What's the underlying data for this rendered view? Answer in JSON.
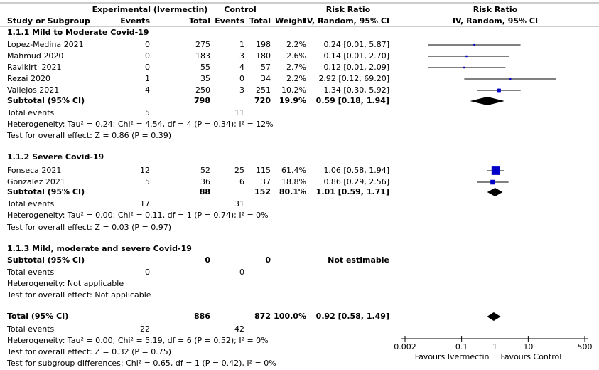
{
  "chart_data": {
    "type": "forest",
    "header": {
      "exp_group": "Experimental (Ivermectin)",
      "ctrl_group": "Control",
      "rr_title": "Risk Ratio",
      "rr_method": "IV, Random, 95% CI",
      "plot_title": "Risk Ratio",
      "plot_method": "IV, Random, 95% CI",
      "study_col": "Study or Subgroup",
      "exp_events": "Events",
      "exp_total": "Total",
      "ctrl_events": "Events",
      "ctrl_total": "Total",
      "weight": "Weight"
    },
    "xlim": [
      0.002,
      500
    ],
    "xticks": [
      0.002,
      0.1,
      1,
      10,
      500
    ],
    "log": true,
    "xlabel_left": "Favours Ivermectin",
    "xlabel_right": "Favours Control",
    "study_color": "#0000c8",
    "summary_color": "#000000",
    "rows": [
      {
        "kind": "heading",
        "label": "1.1.1 Mild to Moderate Covid-19"
      },
      {
        "kind": "study",
        "label": "Lopez-Medina 2021",
        "e_events": 0,
        "e_total": 275,
        "c_events": 1,
        "c_total": 198,
        "weight": 2.2,
        "weight_label": "2.2%",
        "rr": 0.24,
        "lo": 0.01,
        "hi": 5.87,
        "ci_label": "0.24 [0.01, 5.87]"
      },
      {
        "kind": "study",
        "label": "Mahmud 2020",
        "e_events": 0,
        "e_total": 183,
        "c_events": 3,
        "c_total": 180,
        "weight": 2.6,
        "weight_label": "2.6%",
        "rr": 0.14,
        "lo": 0.01,
        "hi": 2.7,
        "ci_label": "0.14 [0.01, 2.70]"
      },
      {
        "kind": "study",
        "label": "Ravikirti 2021",
        "e_events": 0,
        "e_total": 55,
        "c_events": 4,
        "c_total": 57,
        "weight": 2.7,
        "weight_label": "2.7%",
        "rr": 0.12,
        "lo": 0.01,
        "hi": 2.09,
        "ci_label": "0.12 [0.01, 2.09]"
      },
      {
        "kind": "study",
        "label": "Rezai 2020",
        "e_events": 1,
        "e_total": 35,
        "c_events": 0,
        "c_total": 34,
        "weight": 2.2,
        "weight_label": "2.2%",
        "rr": 2.92,
        "lo": 0.12,
        "hi": 69.2,
        "ci_label": "2.92 [0.12, 69.20]"
      },
      {
        "kind": "study",
        "label": "Vallejos 2021",
        "e_events": 4,
        "e_total": 250,
        "c_events": 3,
        "c_total": 251,
        "weight": 10.2,
        "weight_label": "10.2%",
        "rr": 1.34,
        "lo": 0.3,
        "hi": 5.92,
        "ci_label": "1.34 [0.30, 5.92]"
      },
      {
        "kind": "subtotal",
        "label": "Subtotal (95% CI)",
        "e_total": 798,
        "c_total": 720,
        "weight": 19.9,
        "weight_label": "19.9%",
        "rr": 0.59,
        "lo": 0.18,
        "hi": 1.94,
        "ci_label": "0.59 [0.18, 1.94]"
      },
      {
        "kind": "events",
        "label": "Total events",
        "e_events": 5,
        "c_events": 11
      },
      {
        "kind": "note",
        "label": "Heterogeneity: Tau² = 0.24; Chi² = 4.54, df = 4 (P = 0.34); I² = 12%"
      },
      {
        "kind": "note",
        "label": "Test for overall effect: Z = 0.86 (P = 0.39)"
      },
      {
        "kind": "heading",
        "label": "1.1.2 Severe Covid-19"
      },
      {
        "kind": "study",
        "label": "Fonseca 2021",
        "e_events": 12,
        "e_total": 52,
        "c_events": 25,
        "c_total": 115,
        "weight": 61.4,
        "weight_label": "61.4%",
        "rr": 1.06,
        "lo": 0.58,
        "hi": 1.94,
        "ci_label": "1.06 [0.58, 1.94]"
      },
      {
        "kind": "study",
        "label": "Gonzalez 2021",
        "e_events": 5,
        "e_total": 36,
        "c_events": 6,
        "c_total": 37,
        "weight": 18.8,
        "weight_label": "18.8%",
        "rr": 0.86,
        "lo": 0.29,
        "hi": 2.56,
        "ci_label": "0.86 [0.29, 2.56]"
      },
      {
        "kind": "subtotal",
        "label": "Subtotal (95% CI)",
        "e_total": 88,
        "c_total": 152,
        "weight": 80.1,
        "weight_label": "80.1%",
        "rr": 1.01,
        "lo": 0.59,
        "hi": 1.71,
        "ci_label": "1.01 [0.59, 1.71]"
      },
      {
        "kind": "events",
        "label": "Total events",
        "e_events": 17,
        "c_events": 31
      },
      {
        "kind": "note",
        "label": "Heterogeneity: Tau² = 0.00; Chi² = 0.11, df = 1 (P = 0.74); I² = 0%"
      },
      {
        "kind": "note",
        "label": "Test for overall effect: Z = 0.03 (P = 0.97)"
      },
      {
        "kind": "heading",
        "label": "1.1.3 Mild, moderate and severe Covid-19"
      },
      {
        "kind": "subtotal",
        "label": "Subtotal (95% CI)",
        "e_total": 0,
        "c_total": 0,
        "ci_label": "Not estimable"
      },
      {
        "kind": "events",
        "label": "Total events",
        "e_events": 0,
        "c_events": 0
      },
      {
        "kind": "note",
        "label": "Heterogeneity: Not applicable"
      },
      {
        "kind": "note",
        "label": "Test for overall effect: Not applicable"
      },
      {
        "kind": "subtotal",
        "label": "Total (95% CI)",
        "e_total": 886,
        "c_total": 872,
        "weight": 100.0,
        "weight_label": "100.0%",
        "rr": 0.92,
        "lo": 0.58,
        "hi": 1.49,
        "ci_label": "0.92 [0.58, 1.49]"
      },
      {
        "kind": "events",
        "label": "Total events",
        "e_events": 22,
        "c_events": 42
      },
      {
        "kind": "note",
        "label": "Heterogeneity: Tau² = 0.00; Chi² = 5.19, df = 6 (P = 0.52); I² = 0%"
      },
      {
        "kind": "note",
        "label": "Test for overall effect: Z = 0.32 (P = 0.75)"
      },
      {
        "kind": "note",
        "label": "Test for subgroup differences: Chi² = 0.65, df = 1 (P = 0.42), I² = 0%"
      }
    ]
  }
}
